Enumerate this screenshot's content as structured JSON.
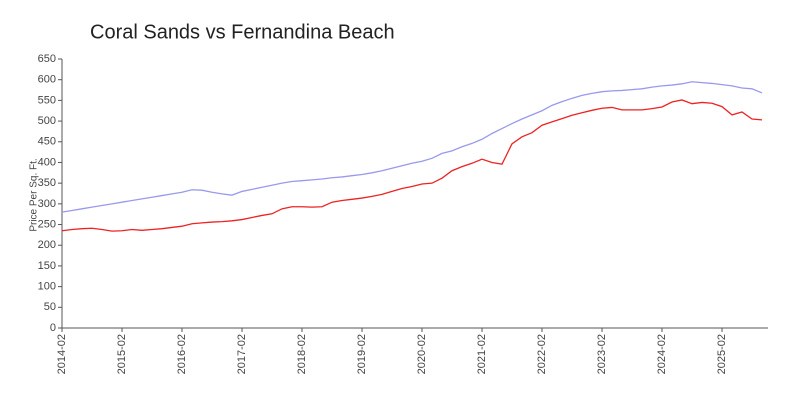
{
  "chart_data": {
    "type": "line",
    "title": "Coral Sands vs Fernandina Beach",
    "y_label": "Price Per Sq. Ft.",
    "categories": [
      "2014-02",
      null,
      null,
      null,
      null,
      null,
      "2015-02",
      null,
      null,
      null,
      null,
      null,
      "2016-02",
      null,
      null,
      null,
      null,
      null,
      "2017-02",
      null,
      null,
      null,
      null,
      null,
      "2018-02",
      null,
      null,
      null,
      null,
      null,
      "2019-02",
      null,
      null,
      null,
      null,
      null,
      "2020-02",
      null,
      null,
      null,
      null,
      null,
      "2021-02",
      null,
      null,
      null,
      null,
      null,
      "2022-02",
      null,
      null,
      null,
      null,
      null,
      "2023-02",
      null,
      null,
      null,
      null,
      null,
      "2024-02",
      null,
      null,
      null,
      null,
      null,
      "2025-02",
      null,
      null,
      null,
      null
    ],
    "series": [
      {
        "color": "#9999ee",
        "values": [
          280,
          284,
          288,
          292,
          296,
          300,
          304,
          308,
          312,
          316,
          320,
          324,
          328,
          334,
          333,
          328,
          324,
          321,
          330,
          335,
          340,
          345,
          350,
          354,
          356,
          358,
          360,
          363,
          365,
          368,
          371,
          375,
          380,
          386,
          392,
          398,
          403,
          410,
          422,
          428,
          438,
          446,
          456,
          470,
          482,
          494,
          505,
          515,
          525,
          538,
          547,
          555,
          562,
          567,
          571,
          573,
          574,
          576,
          578,
          582,
          585,
          587,
          590,
          595,
          593,
          591,
          588,
          585,
          580,
          578,
          568
        ]
      },
      {
        "color": "#ee2222",
        "values": [
          235,
          238,
          240,
          241,
          238,
          234,
          235,
          238,
          236,
          238,
          240,
          243,
          246,
          252,
          254,
          256,
          257,
          259,
          262,
          267,
          272,
          276,
          288,
          293,
          293,
          292,
          293,
          304,
          308,
          311,
          314,
          318,
          323,
          330,
          337,
          342,
          348,
          350,
          362,
          380,
          390,
          398,
          408,
          400,
          396,
          445,
          462,
          472,
          490,
          498,
          506,
          514,
          520,
          526,
          531,
          533,
          527,
          527,
          527,
          530,
          534,
          546,
          551,
          542,
          545,
          543,
          535,
          515,
          522,
          505,
          503
        ]
      }
    ],
    "ylim": [
      0,
      650
    ],
    "yticks": [
      0,
      50,
      100,
      150,
      200,
      250,
      300,
      350,
      400,
      450,
      500,
      550,
      600,
      650
    ]
  }
}
